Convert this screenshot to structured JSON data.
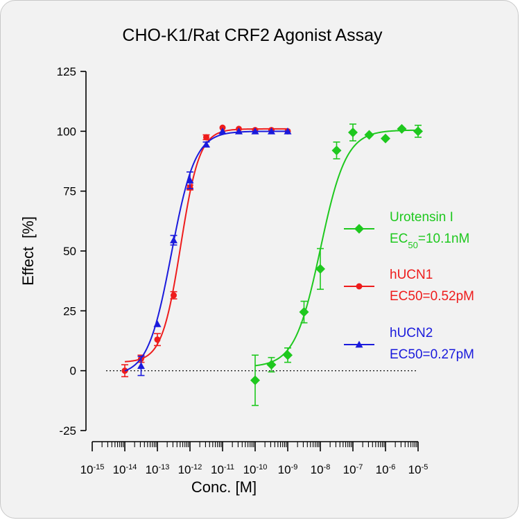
{
  "chart_data": {
    "type": "scatter",
    "title": "CHO-K1/Rat CRF2 Agonist Assay",
    "xlabel": "Conc. [M]",
    "ylabel": "Effect  [%]",
    "x_scale": "log",
    "xlim": [
      1e-15,
      1e-05
    ],
    "ylim": [
      -25,
      125
    ],
    "x_ticks": [
      {
        "base": "10",
        "exp": "-15",
        "value": 1e-15
      },
      {
        "base": "10",
        "exp": "-14",
        "value": 1e-14
      },
      {
        "base": "10",
        "exp": "-13",
        "value": 1e-13
      },
      {
        "base": "10",
        "exp": "-12",
        "value": 1e-12
      },
      {
        "base": "10",
        "exp": "-11",
        "value": 1e-11
      },
      {
        "base": "10",
        "exp": "-10",
        "value": 1e-10
      },
      {
        "base": "10",
        "exp": "-9",
        "value": 1e-09
      },
      {
        "base": "10",
        "exp": "-8",
        "value": 1e-08
      },
      {
        "base": "10",
        "exp": "-7",
        "value": 1e-07
      },
      {
        "base": "10",
        "exp": "-6",
        "value": 1e-06
      },
      {
        "base": "10",
        "exp": "-5",
        "value": 1e-05
      }
    ],
    "y_ticks": [
      "-25",
      "0",
      "25",
      "50",
      "75",
      "100",
      "125"
    ],
    "baseline": 0,
    "legend_position": "right",
    "series": [
      {
        "name": "Urotensin I",
        "legend_lines": [
          "Urotensin I",
          "EC50=10.1nM"
        ],
        "legend_sub": "50",
        "color": "#1ec81e",
        "marker": "diamond",
        "ec50": 1.01e-08,
        "hill": 1.1,
        "bottom": 1.5,
        "top": 100.5,
        "curve_range": [
          1e-10,
          1e-05
        ],
        "x": [
          1e-10,
          3.16e-10,
          1e-09,
          3.16e-09,
          1e-08,
          3.16e-08,
          1e-07,
          3.16e-07,
          1e-06,
          3.16e-06,
          1e-05
        ],
        "y": [
          -4,
          2.5,
          6.5,
          24.5,
          42.5,
          92,
          99.5,
          98.5,
          97,
          101,
          100
        ],
        "err": [
          10.5,
          3,
          3,
          4.5,
          8.5,
          3.5,
          3.5,
          0,
          0,
          0,
          2.5
        ]
      },
      {
        "name": "hUCN1",
        "legend_lines": [
          "hUCN1",
          "EC50=0.52pM"
        ],
        "color": "#ee1c1c",
        "marker": "circle",
        "ec50": 5.2e-13,
        "hill": 1.5,
        "bottom": 3.5,
        "top": 101,
        "curve_range": [
          1e-14,
          1e-09
        ],
        "x": [
          1e-14,
          3.16e-14,
          1e-13,
          3.16e-13,
          1e-12,
          3.16e-12,
          1e-11,
          3.16e-11,
          1e-10,
          3.16e-10,
          1e-09
        ],
        "y": [
          0,
          5,
          13,
          31.5,
          76.5,
          97.5,
          101.5,
          101,
          100.5,
          100.5,
          100
        ],
        "err": [
          2.5,
          1.5,
          2.5,
          1.5,
          1,
          1,
          0,
          0,
          0,
          0,
          0
        ]
      },
      {
        "name": "hUCN2",
        "legend_lines": [
          "hUCN2",
          "EC50=0.27pM"
        ],
        "color": "#1a1adc",
        "marker": "triangle",
        "ec50": 2.7e-13,
        "hill": 1.2,
        "bottom": -2,
        "top": 100,
        "curve_range": [
          1e-14,
          1e-09
        ],
        "x": [
          3.16e-14,
          1e-13,
          3.16e-13,
          1e-12,
          3.16e-12,
          1e-11,
          3.16e-11,
          1e-10,
          3.16e-10,
          1e-09
        ],
        "y": [
          2,
          19.5,
          54.5,
          79.5,
          94.5,
          100,
          100,
          100,
          100,
          100
        ],
        "err": [
          4,
          0,
          2,
          3.5,
          1,
          0,
          0,
          0,
          0,
          0
        ]
      }
    ]
  }
}
